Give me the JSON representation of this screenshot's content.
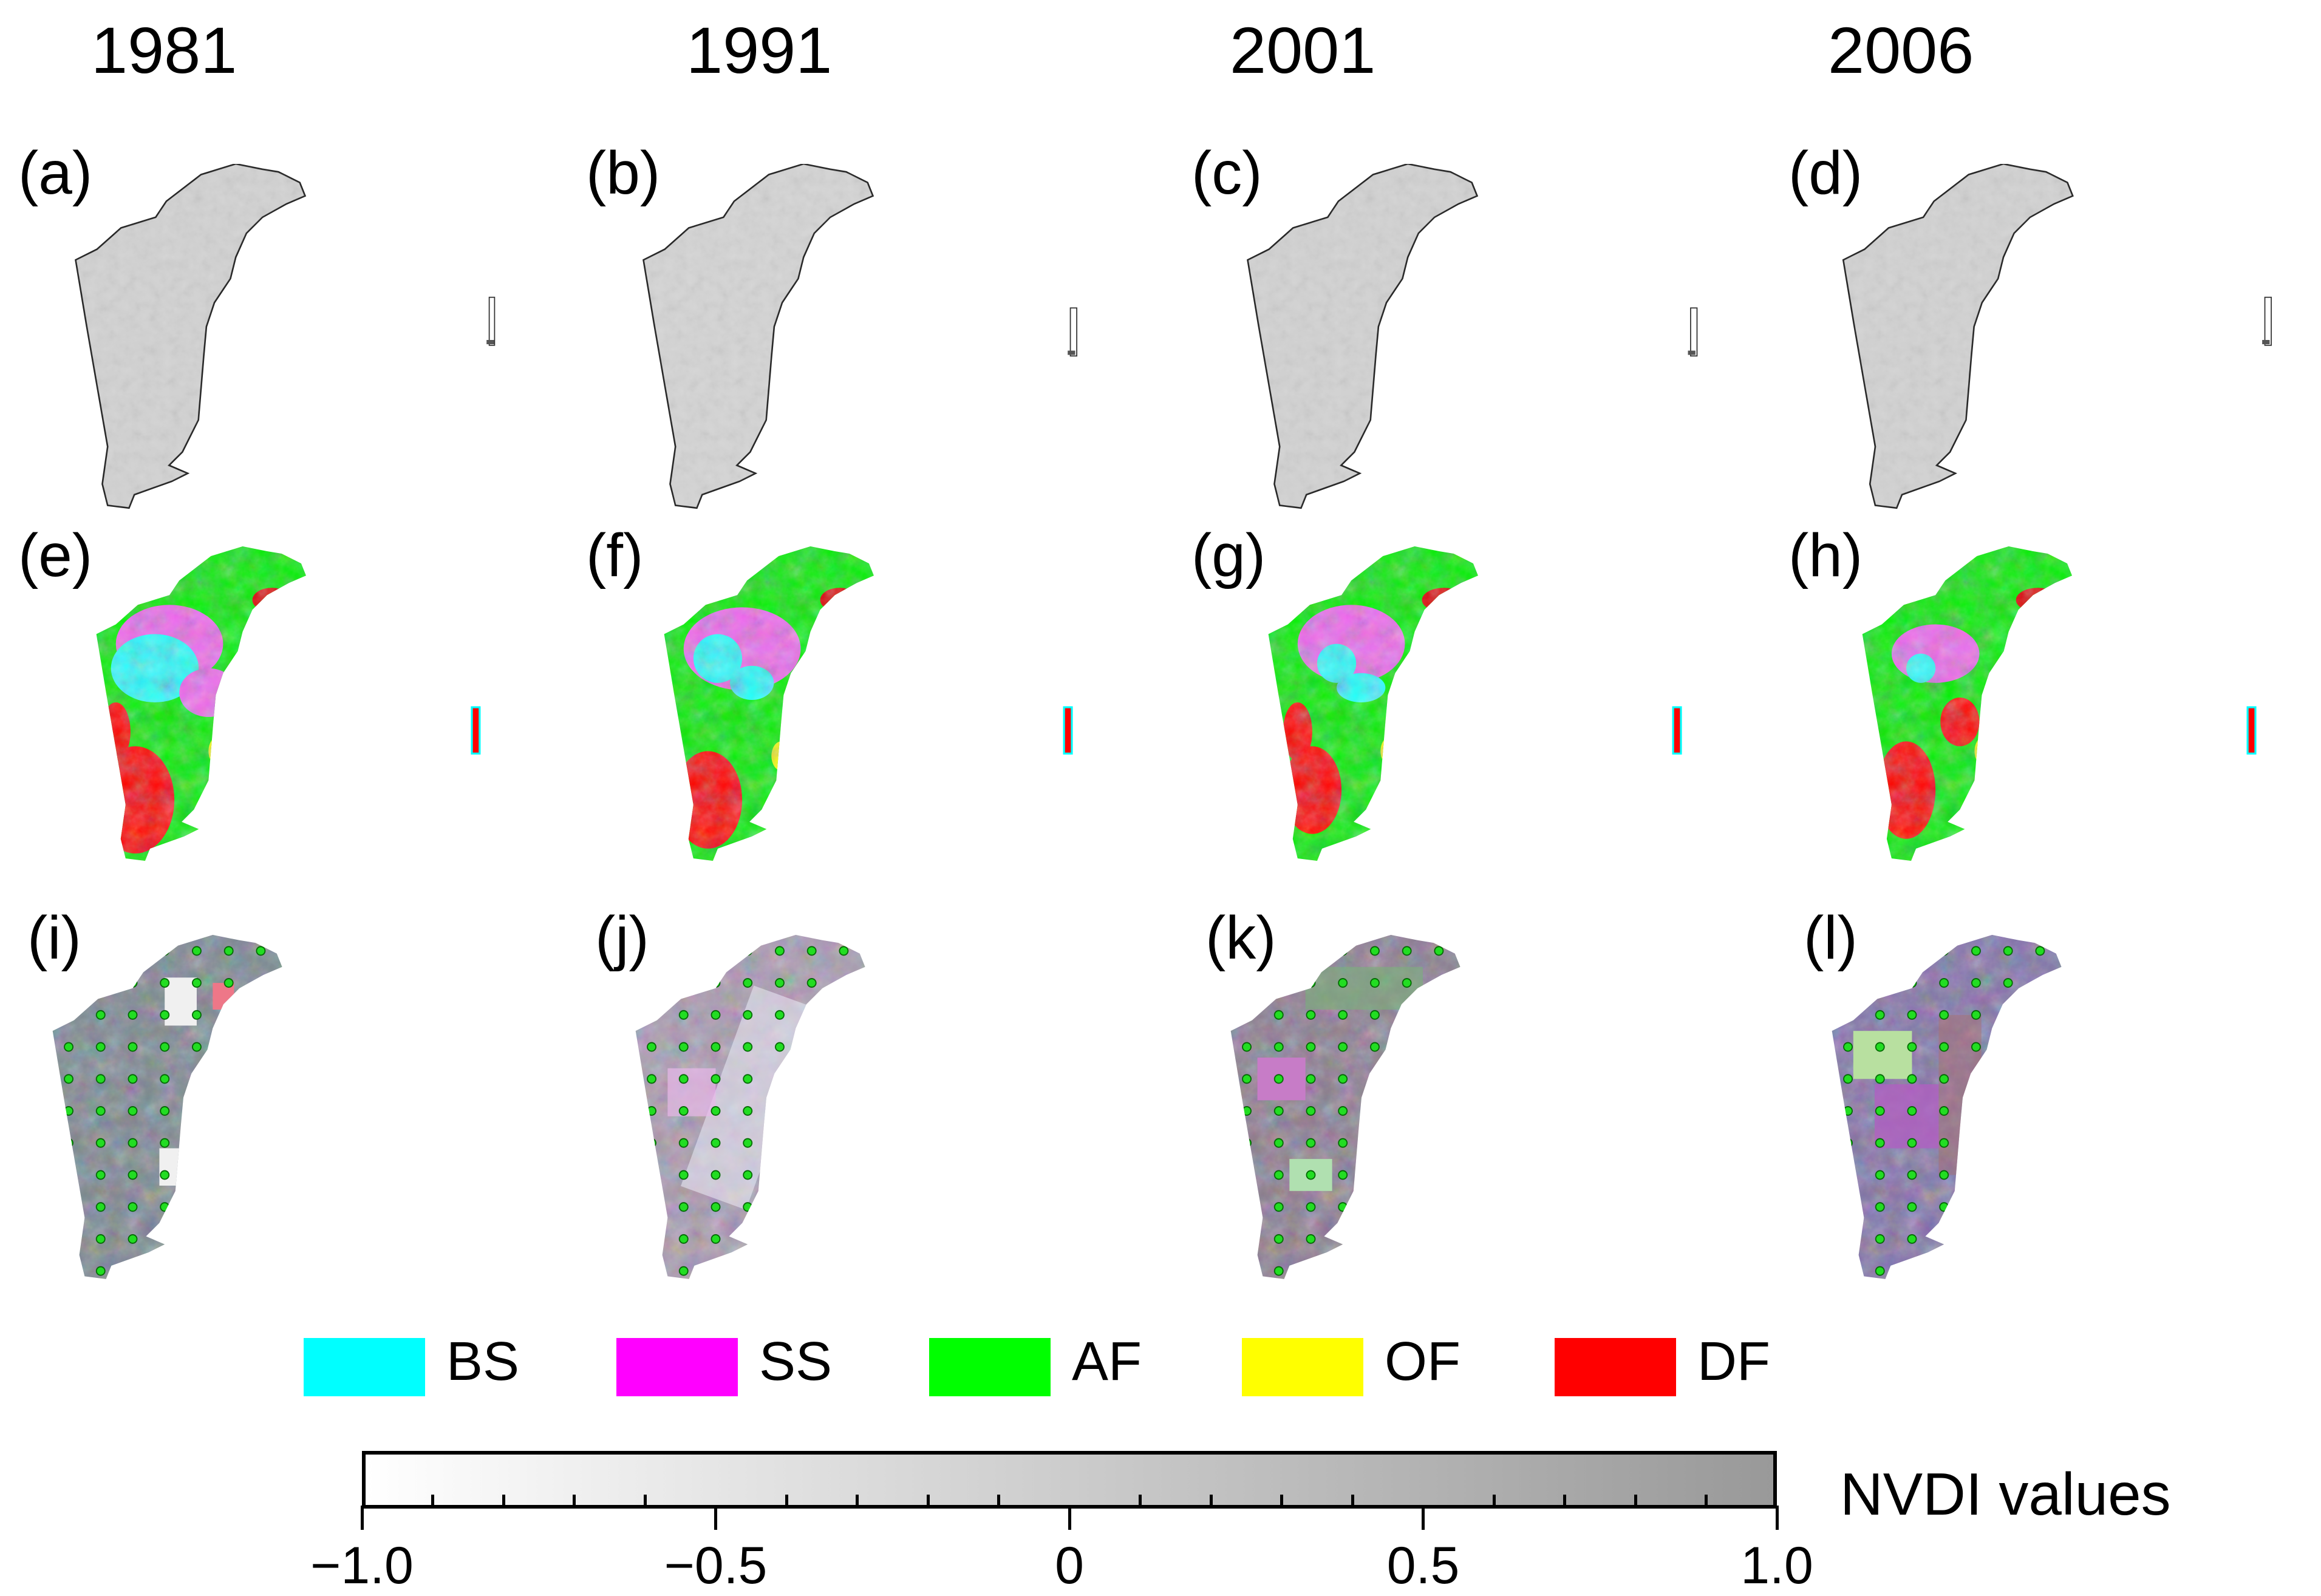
{
  "years": [
    "1981",
    "1991",
    "2001",
    "2006"
  ],
  "rows": [
    {
      "type": "ndvi-grayscale",
      "panels": [
        "(a)",
        "(b)",
        "(c)",
        "(d)"
      ]
    },
    {
      "type": "forest-classification",
      "panels": [
        "(e)",
        "(f)",
        "(g)",
        "(h)"
      ]
    },
    {
      "type": "satellite-composite",
      "panels": [
        "(i)",
        "(j)",
        "(k)",
        "(l)"
      ]
    }
  ],
  "legend": [
    {
      "code": "BS",
      "color": "#00ffff"
    },
    {
      "code": "SS",
      "color": "#ff00ff"
    },
    {
      "code": "AF",
      "color": "#00ff00"
    },
    {
      "code": "OF",
      "color": "#ffff00"
    },
    {
      "code": "DF",
      "color": "#ff0000"
    }
  ],
  "colorbar": {
    "title": "NVDI values",
    "min": -1.0,
    "max": 1.0,
    "tick_labels": [
      "−1.0",
      "−0.5",
      "0",
      "0.5",
      "1.0"
    ],
    "tick_values": [
      -1.0,
      -0.5,
      0,
      0.5,
      1.0
    ],
    "color_low": "#ffffff",
    "color_high": "#999999"
  }
}
